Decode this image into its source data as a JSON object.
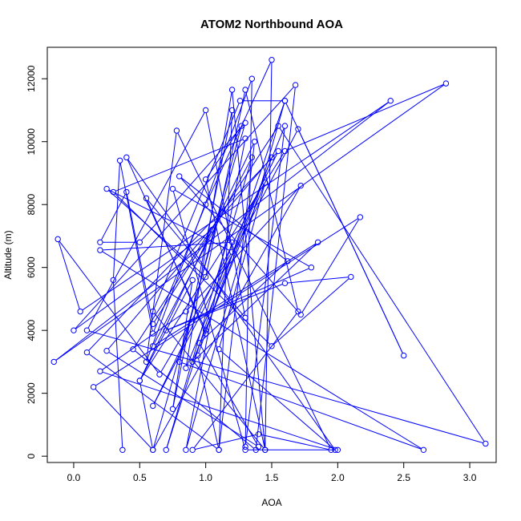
{
  "chart_data": {
    "type": "line",
    "title": "ATOM2 Northbound AOA",
    "xlabel": "AOA",
    "ylabel": "Altitude (m)",
    "xlim": [
      -0.2,
      3.2
    ],
    "ylim": [
      -200,
      13000
    ],
    "xticks": [
      "0.0",
      "0.5",
      "1.0",
      "1.5",
      "2.0",
      "2.5",
      "3.0"
    ],
    "xtick_values": [
      0,
      0.5,
      1.0,
      1.5,
      2.0,
      2.5,
      3.0
    ],
    "yticks": [
      "0",
      "2000",
      "4000",
      "6000",
      "8000",
      "10000",
      "12000"
    ],
    "ytick_values": [
      0,
      2000,
      4000,
      6000,
      8000,
      10000,
      12000
    ],
    "grid": false,
    "legend": "none",
    "colors": {
      "series": "#0000ff",
      "axes": "#000000"
    },
    "series": [
      {
        "marker": "open-circle",
        "points": [
          [
            0.37,
            200
          ],
          [
            0.3,
            5600
          ],
          [
            0.35,
            9400
          ],
          [
            0.6,
            3900
          ],
          [
            1.0,
            8000
          ],
          [
            1.5,
            12600
          ],
          [
            1.45,
            200
          ],
          [
            0.6,
            4600
          ],
          [
            1.26,
            11300
          ],
          [
            1.6,
            11300
          ],
          [
            0.94,
            3200
          ],
          [
            1.1,
            200
          ],
          [
            1.37,
            10000
          ],
          [
            0.5,
            2400
          ],
          [
            0.9,
            5600
          ],
          [
            0.75,
            1500
          ],
          [
            1.2,
            11000
          ],
          [
            1.1,
            200
          ],
          [
            0.1,
            3300
          ],
          [
            1.55,
            9700
          ],
          [
            0.6,
            1600
          ],
          [
            1.7,
            10400
          ],
          [
            2.5,
            3200
          ],
          [
            1.6,
            11300
          ],
          [
            0.85,
            200
          ],
          [
            1.3,
            10100
          ],
          [
            0.3,
            8400
          ],
          [
            1.5,
            3500
          ],
          [
            2.1,
            5700
          ],
          [
            1.6,
            5500
          ],
          [
            0.7,
            4000
          ],
          [
            1.8,
            6000
          ],
          [
            0.75,
            8500
          ],
          [
            1.3,
            200
          ],
          [
            2.0,
            200
          ],
          [
            0.2,
            2700
          ],
          [
            0.85,
            4600
          ],
          [
            1.72,
            8600
          ],
          [
            0.6,
            200
          ],
          [
            0.5,
            2400
          ],
          [
            1.6,
            9700
          ],
          [
            2.82,
            11850
          ],
          [
            -0.15,
            3000
          ],
          [
            2.4,
            11300
          ],
          [
            0.05,
            4600
          ],
          [
            -0.12,
            6900
          ],
          [
            0.65,
            2600
          ],
          [
            1.2,
            6500
          ],
          [
            0.25,
            8500
          ],
          [
            1.0,
            5700
          ],
          [
            1.3,
            11650
          ],
          [
            1.7,
            4600
          ],
          [
            0.9,
            200
          ],
          [
            1.4,
            700
          ],
          [
            1.95,
            200
          ],
          [
            0.78,
            10350
          ],
          [
            0.55,
            3000
          ],
          [
            1.35,
            12000
          ],
          [
            1.3,
            300
          ],
          [
            1.6,
            10500
          ],
          [
            0.85,
            2800
          ],
          [
            1.2,
            11650
          ],
          [
            1.45,
            200
          ],
          [
            1.0,
            8800
          ],
          [
            1.27,
            10500
          ],
          [
            0.8,
            3000
          ],
          [
            2.65,
            200
          ],
          [
            0.2,
            6550
          ],
          [
            1.2,
            6800
          ],
          [
            0.7,
            200
          ],
          [
            1.35,
            9500
          ],
          [
            0.6,
            3500
          ],
          [
            1.85,
            6800
          ],
          [
            0.9,
            3000
          ],
          [
            1.45,
            8700
          ],
          [
            1.1,
            3400
          ],
          [
            1.98,
            200
          ],
          [
            0.4,
            9500
          ],
          [
            1.0,
            4000
          ],
          [
            1.5,
            9500
          ],
          [
            0.25,
            3350
          ],
          [
            1.4,
            300
          ],
          [
            0.95,
            3600
          ],
          [
            1.62,
            6200
          ],
          [
            0.8,
            8900
          ],
          [
            1.72,
            4500
          ],
          [
            2.17,
            7600
          ],
          [
            0.15,
            2200
          ],
          [
            0.6,
            200
          ],
          [
            1.3,
            10600
          ],
          [
            0.5,
            6800
          ],
          [
            0.2,
            6800
          ],
          [
            0.4,
            8400
          ],
          [
            0.6,
            4200
          ],
          [
            1.05,
            7200
          ],
          [
            0.0,
            4000
          ],
          [
            1.68,
            11800
          ],
          [
            1.38,
            200
          ],
          [
            0.45,
            3400
          ],
          [
            1.55,
            10500
          ],
          [
            3.12,
            400
          ],
          [
            0.1,
            4000
          ],
          [
            1.0,
            11000
          ],
          [
            1.3,
            4400
          ],
          [
            0.55,
            8200
          ],
          [
            1.0,
            3900
          ]
        ]
      }
    ]
  }
}
